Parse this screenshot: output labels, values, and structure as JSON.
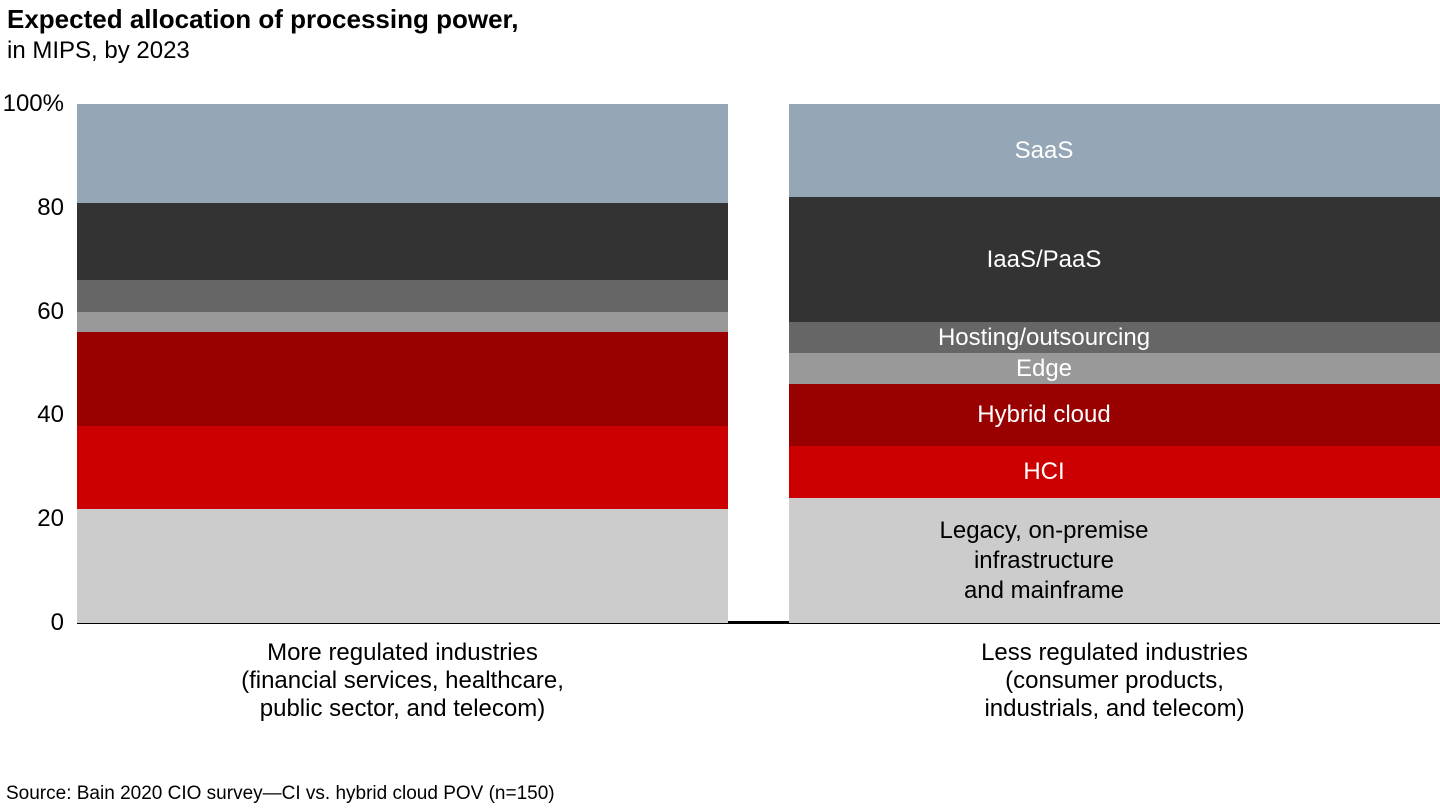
{
  "source": "Source: Bain 2020 CIO survey—CI vs. hybrid cloud POV (n=150)",
  "chart_data": {
    "type": "bar",
    "stacked": true,
    "unit": "percent",
    "title": "Expected allocation of processing power,",
    "subtitle": "in MIPS, by 2023",
    "categories": [
      "More regulated industries\n(financial services, healthcare,\npublic sector, and telecom)",
      "Less regulated industries\n(consumer products,\nindustrials, and telecom)"
    ],
    "y_ticks": [
      "0",
      "20",
      "40",
      "60",
      "80",
      "100%"
    ],
    "tick_values": [
      0,
      20,
      40,
      60,
      80,
      100
    ],
    "ylim": [
      0,
      100
    ],
    "grid": false,
    "legend_position": "labels-inside-right-bar",
    "series": [
      {
        "name": "Legacy, on-premise infrastructure and mainframe",
        "label": "Legacy, on-premise\ninfrastructure\nand mainframe",
        "values": [
          22,
          24
        ],
        "color": "#cccccc",
        "label_color": "#000000"
      },
      {
        "name": "HCI",
        "label": "HCI",
        "values": [
          16,
          10
        ],
        "color": "#cc0000",
        "label_color": "#ffffff"
      },
      {
        "name": "Hybrid cloud",
        "label": "Hybrid cloud",
        "values": [
          18,
          12
        ],
        "color": "#990000",
        "label_color": "#ffffff"
      },
      {
        "name": "Edge",
        "label": "Edge",
        "values": [
          4,
          6
        ],
        "color": "#999999",
        "label_color": "#ffffff"
      },
      {
        "name": "Hosting/outsourcing",
        "label": "Hosting/outsourcing",
        "values": [
          6,
          6
        ],
        "color": "#666666",
        "label_color": "#ffffff"
      },
      {
        "name": "IaaS/PaaS",
        "label": "IaaS/PaaS",
        "values": [
          15,
          24
        ],
        "color": "#333333",
        "label_color": "#ffffff"
      },
      {
        "name": "SaaS",
        "label": "SaaS",
        "values": [
          19,
          18
        ],
        "color": "#95a7b7",
        "label_color": "#ffffff"
      }
    ]
  }
}
